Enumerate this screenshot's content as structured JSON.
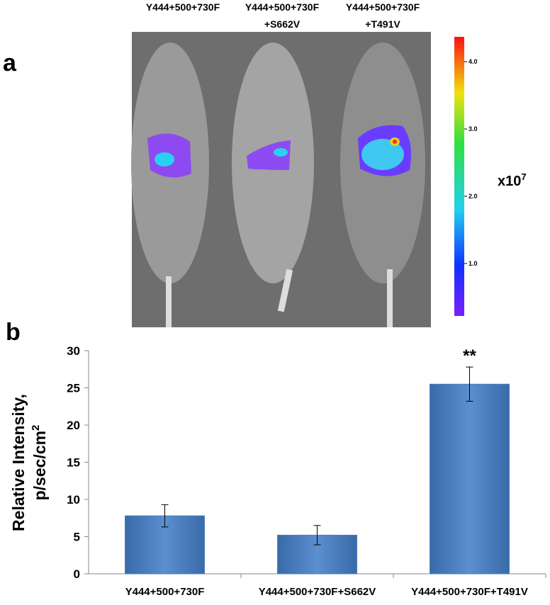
{
  "panel_a": {
    "label": "a",
    "columns": [
      [
        "Y444+500+730F"
      ],
      [
        "Y444+500+730F",
        "+S662V"
      ],
      [
        "Y444+500+730F",
        "+T491V"
      ]
    ],
    "colorbar": {
      "lim": [
        0.22,
        4.37
      ],
      "ticks": [
        {
          "value": 1,
          "label": "1.0"
        },
        {
          "value": 2,
          "label": "2.0"
        },
        {
          "value": 3,
          "label": "3.0"
        },
        {
          "value": 4,
          "label": "4.0"
        }
      ],
      "unit": "x10",
      "exponent": "7"
    }
  },
  "panel_b": {
    "label": "b"
  },
  "chart_data": {
    "type": "bar",
    "categories": [
      "Y444+500+730F",
      "Y444+500+730F+S662V",
      "Y444+500+730F+T491V"
    ],
    "values": [
      7.8,
      5.2,
      25.5
    ],
    "errors": [
      1.5,
      1.3,
      2.3
    ],
    "annotations": [
      null,
      null,
      "**"
    ],
    "color": "#4a7ebb",
    "ylabel": [
      "Relative Intensity,",
      "p/sec/cm"
    ],
    "ylabel_superscript": "2",
    "ylim": [
      0,
      30
    ],
    "yticks": [
      0,
      5,
      10,
      15,
      20,
      25,
      30
    ],
    "grid": false
  }
}
